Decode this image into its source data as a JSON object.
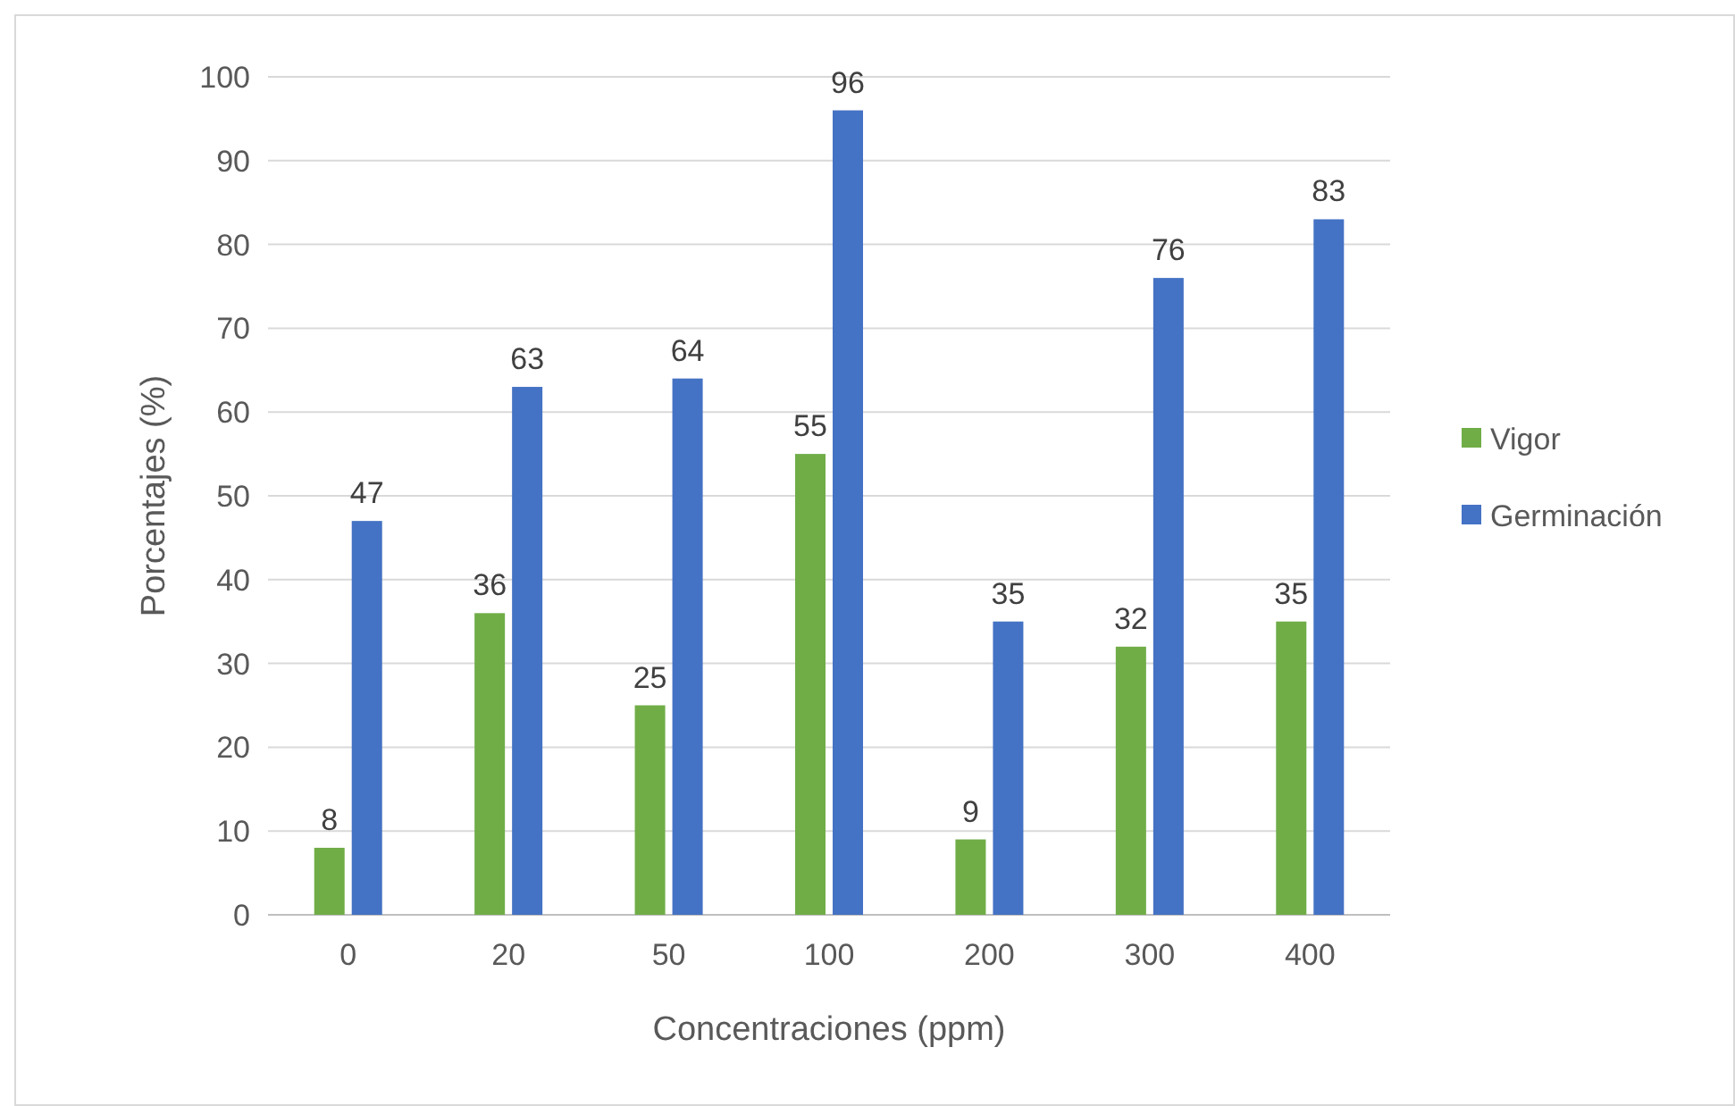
{
  "chart_data": {
    "type": "bar",
    "xlabel": "Concentraciones (ppm)",
    "ylabel": "Porcentajes (%)",
    "categories": [
      "0",
      "20",
      "50",
      "100",
      "200",
      "300",
      "400"
    ],
    "series": [
      {
        "name": "Vigor",
        "color": "#70ad47",
        "values": [
          8,
          36,
          25,
          55,
          9,
          32,
          35
        ]
      },
      {
        "name": "Germinación",
        "color": "#4472c4",
        "values": [
          47,
          63,
          64,
          96,
          35,
          76,
          83
        ]
      }
    ],
    "ylim": [
      0,
      100
    ],
    "yticks": [
      0,
      10,
      20,
      30,
      40,
      50,
      60,
      70,
      80,
      90,
      100
    ],
    "grid": "y",
    "legend": "right",
    "data_labels": true
  }
}
